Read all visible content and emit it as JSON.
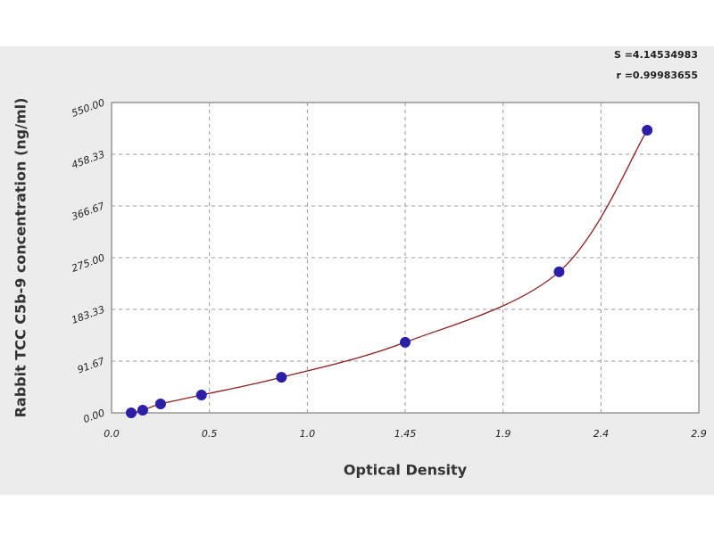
{
  "chart_data": {
    "type": "scatter",
    "annotations": [
      "S =4.14534983",
      "r =0.99983655"
    ],
    "xlabel": "Optical Density",
    "ylabel": "Rabbit TCC C5b-9 concentration (ng/ml)",
    "series": [
      {
        "color": "#2b1fa8",
        "line_color": "#8b2020",
        "x": [
          0.097,
          0.154,
          0.242,
          0.444,
          0.839,
          1.45,
          2.21,
          2.645
        ],
        "values": [
          0,
          4.7,
          15.8,
          31.6,
          63,
          125,
          250,
          501
        ]
      }
    ],
    "xlim": [
      0,
      2.9
    ],
    "xticks": [
      {
        "value": 0,
        "label": "0.0"
      },
      {
        "value": 0.4833,
        "label": "0.5"
      },
      {
        "value": 0.9667,
        "label": "1.0"
      },
      1.45,
      {
        "value": 1.9333,
        "label": "1.9"
      },
      {
        "value": 2.4167,
        "label": "2.4"
      },
      2.9
    ],
    "ylim": [
      0,
      550
    ],
    "yticks": [
      {
        "value": 0,
        "label": "0.00"
      },
      91.67,
      183.33,
      {
        "value": 275,
        "label": "275.00"
      },
      366.67,
      458.33,
      {
        "value": 550,
        "label": "550.00"
      }
    ],
    "grid": true
  }
}
